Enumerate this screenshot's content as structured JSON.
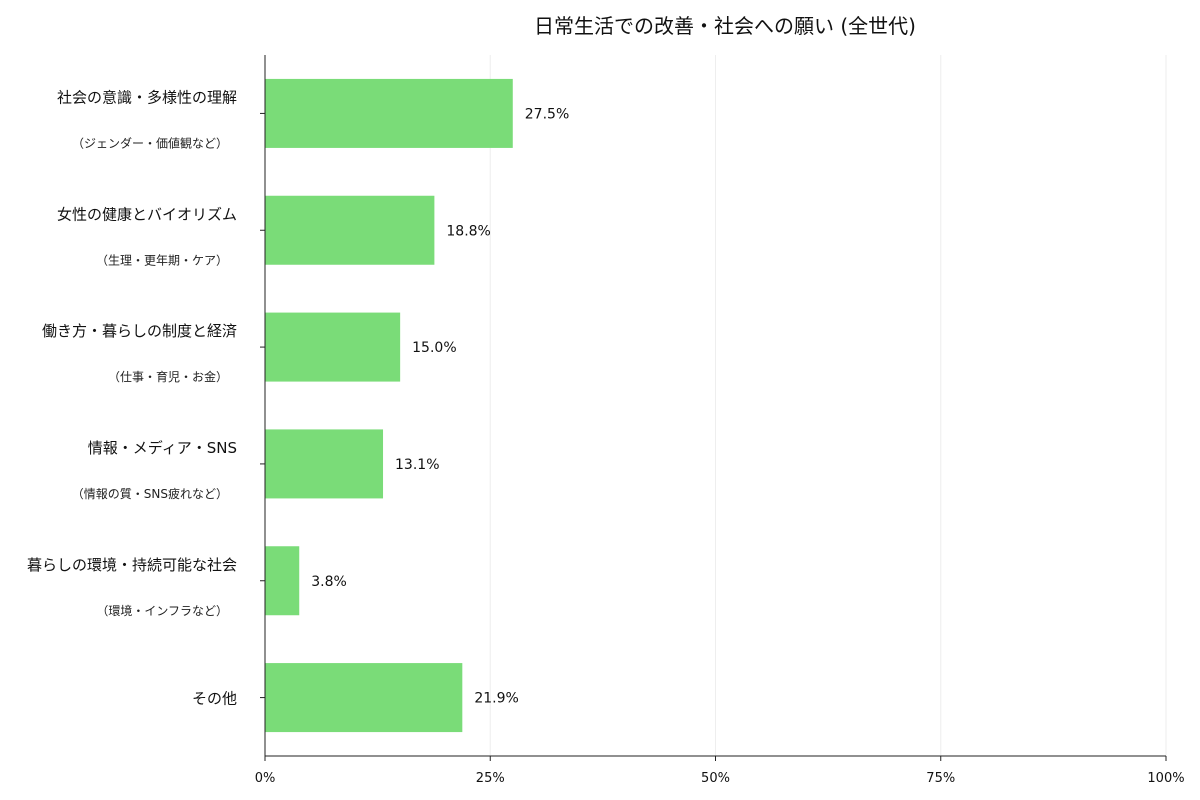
{
  "chart_data": {
    "type": "bar",
    "orientation": "horizontal",
    "title": "日常生活での改善・社会への願い (全世代)",
    "categories": [
      {
        "label": "社会の意識・多様性の理解",
        "sublabel": "（ジェンダー・価値観など）"
      },
      {
        "label": "女性の健康とバイオリズム",
        "sublabel": "（生理・更年期・ケア）"
      },
      {
        "label": "働き方・暮らしの制度と経済",
        "sublabel": "（仕事・育児・お金）"
      },
      {
        "label": "情報・メディア・SNS",
        "sublabel": "（情報の質・SNS疲れなど）"
      },
      {
        "label": "暮らしの環境・持続可能な社会",
        "sublabel": "（環境・インフラなど）"
      },
      {
        "label": "その他",
        "sublabel": ""
      }
    ],
    "values": [
      27.5,
      18.8,
      15.0,
      13.1,
      3.8,
      21.9
    ],
    "data_labels": [
      "27.5%",
      "18.8%",
      "15.0%",
      "13.1%",
      "3.8%",
      "21.9%"
    ],
    "xlim": [
      0,
      100
    ],
    "xticks": [
      0,
      25,
      50,
      75,
      100
    ],
    "xtick_labels": [
      "0%",
      "25%",
      "50%",
      "75%",
      "100%"
    ],
    "grid": true,
    "bar_color": "#7ADC78",
    "grid_color": "#eeeeee",
    "axis_color": "#222222"
  }
}
